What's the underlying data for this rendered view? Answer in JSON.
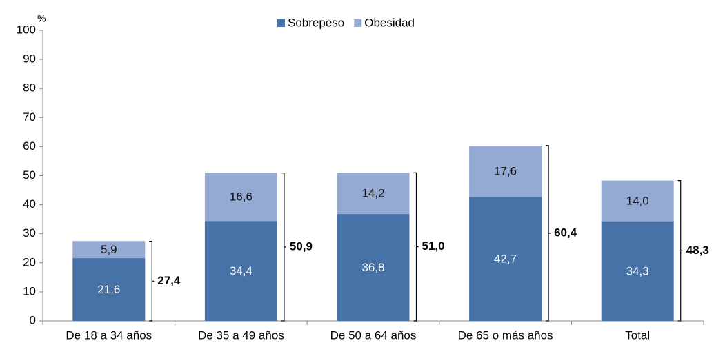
{
  "chart_data": {
    "type": "stacked_bar",
    "y_label": "%",
    "categories": [
      "De 18 a 34 años",
      "De 35 a 49 años",
      "De 50 a 64 años",
      "De 65 o más años",
      "Total"
    ],
    "series": [
      {
        "name": "Sobrepeso",
        "color": "#4672a8",
        "values": [
          21.6,
          34.4,
          36.8,
          42.7,
          34.3
        ],
        "value_labels": [
          "21,6",
          "34,4",
          "36,8",
          "42,7",
          "34,3"
        ]
      },
      {
        "name": "Obesidad",
        "color": "#95aad3",
        "values": [
          5.9,
          16.6,
          14.2,
          17.6,
          14.0
        ],
        "value_labels": [
          "5,9",
          "16,6",
          "14,2",
          "17,6",
          "14,0"
        ]
      }
    ],
    "totals": {
      "values": [
        27.4,
        50.9,
        51.0,
        60.4,
        48.3
      ],
      "value_labels": [
        "27,4",
        "50,9",
        "51,0",
        "60,4",
        "48,3"
      ]
    },
    "ylim": [
      0,
      100
    ],
    "yticks": [
      0,
      10,
      20,
      30,
      40,
      50,
      60,
      70,
      80,
      90,
      100
    ],
    "legend": "top"
  }
}
